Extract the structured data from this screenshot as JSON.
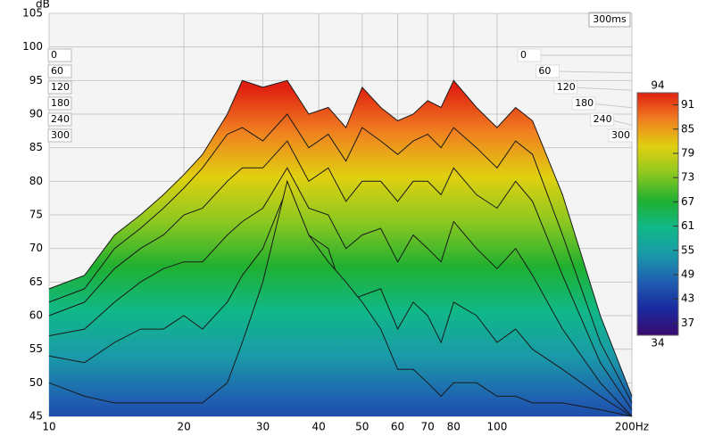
{
  "chart_data": {
    "type": "waterfall",
    "y_label": "dB",
    "z_end_label": "300ms",
    "log_x": true,
    "grid": true,
    "xlim": [
      10,
      200
    ],
    "xticks": [
      10,
      20,
      30,
      40,
      50,
      60,
      70,
      80,
      100,
      {
        "value": 200,
        "label": "200Hz"
      }
    ],
    "ylim": [
      45,
      105
    ],
    "yticks": [
      45,
      50,
      55,
      60,
      65,
      70,
      75,
      80,
      85,
      90,
      95,
      100,
      105
    ],
    "zticks": [
      0,
      60,
      120,
      180,
      240,
      300
    ],
    "x": [
      10,
      12,
      14,
      16,
      18,
      20,
      22,
      25,
      27,
      30,
      34,
      38,
      42,
      46,
      50,
      55,
      60,
      65,
      70,
      75,
      80,
      90,
      100,
      110,
      120,
      140,
      170,
      200
    ],
    "series": [
      {
        "values": [
          64,
          66,
          72,
          75,
          78,
          81,
          84,
          90,
          95,
          94,
          95,
          90,
          91,
          88,
          94,
          91,
          89,
          90,
          92,
          91,
          95,
          91,
          88,
          91,
          89,
          78,
          60,
          48
        ]
      },
      {
        "values": [
          62,
          64,
          70,
          73,
          76,
          79,
          82,
          87,
          88,
          86,
          90,
          85,
          87,
          83,
          88,
          86,
          84,
          86,
          87,
          85,
          88,
          85,
          82,
          86,
          84,
          72,
          56,
          47
        ]
      },
      {
        "values": [
          60,
          62,
          67,
          70,
          72,
          75,
          76,
          80,
          82,
          82,
          86,
          80,
          82,
          77,
          80,
          80,
          77,
          80,
          80,
          78,
          82,
          78,
          76,
          80,
          77,
          66,
          53,
          46
        ]
      },
      {
        "values": [
          57,
          58,
          62,
          65,
          67,
          68,
          68,
          72,
          74,
          76,
          82,
          76,
          75,
          70,
          72,
          73,
          68,
          72,
          70,
          68,
          74,
          70,
          67,
          70,
          66,
          58,
          50,
          45
        ]
      },
      {
        "values": [
          54,
          53,
          56,
          58,
          58,
          60,
          58,
          62,
          66,
          70,
          79,
          72,
          70,
          62,
          63,
          64,
          58,
          62,
          60,
          56,
          62,
          60,
          56,
          58,
          55,
          52,
          48,
          45
        ]
      },
      {
        "values": [
          50,
          48,
          47,
          47,
          47,
          47,
          47,
          50,
          56,
          65,
          80,
          72,
          68,
          65,
          62,
          58,
          52,
          52,
          50,
          48,
          50,
          50,
          48,
          48,
          47,
          47,
          46,
          45
        ]
      }
    ],
    "clim": [
      34,
      94
    ],
    "cticks": [
      37,
      43,
      49,
      55,
      61,
      67,
      73,
      79,
      85,
      91
    ],
    "colors": [
      "#3a0a6e",
      "#1a2aa0",
      "#1f5fb0",
      "#1a9aa8",
      "#10b888",
      "#20b030",
      "#8cc820",
      "#e0d010",
      "#f08020",
      "#e02010"
    ]
  }
}
